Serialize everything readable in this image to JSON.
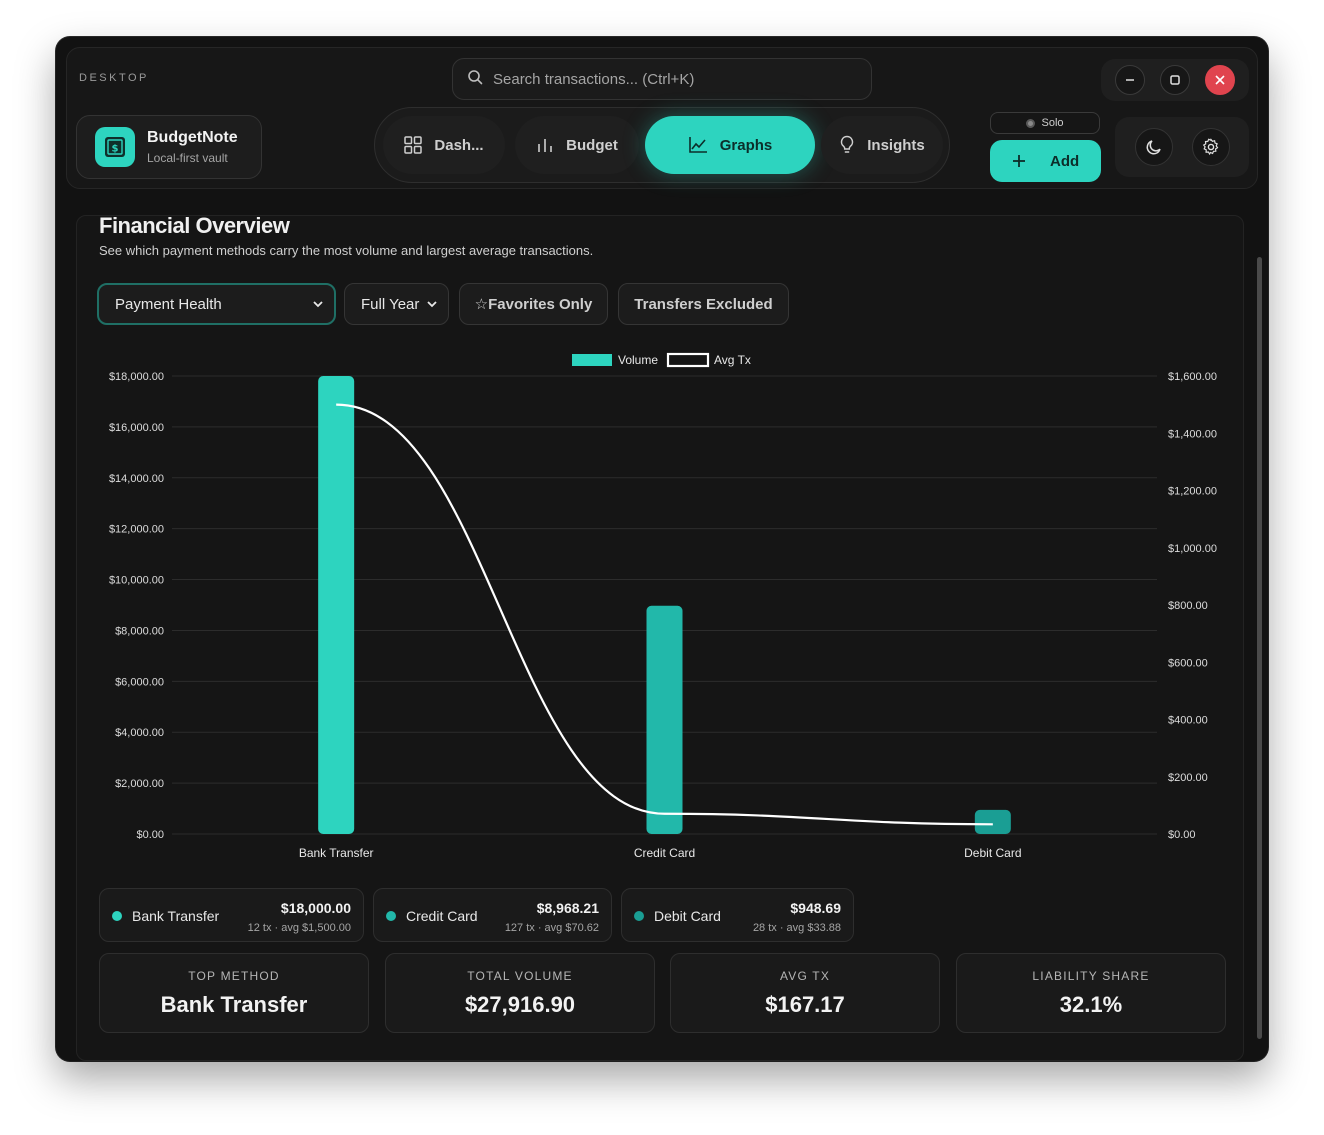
{
  "window": {
    "label": "DESKTOP"
  },
  "search": {
    "placeholder": "Search transactions... (Ctrl+K)"
  },
  "brand": {
    "name": "BudgetNote",
    "subtitle": "Local-first vault"
  },
  "nav": {
    "tabs": [
      {
        "label": "Dash...",
        "icon": "grid-icon"
      },
      {
        "label": "Budget",
        "icon": "bars-icon"
      },
      {
        "label": "Graphs",
        "icon": "line-chart-icon",
        "active": true
      },
      {
        "label": "Insights",
        "icon": "lightbulb-icon"
      }
    ]
  },
  "mode": {
    "label": "Solo"
  },
  "add": {
    "label": "Add"
  },
  "page": {
    "title": "Financial Overview",
    "subtitle": "See which payment methods carry the most volume and largest average transactions."
  },
  "filters": {
    "view": {
      "selected": "Payment Health"
    },
    "period": {
      "selected": "Full Year"
    },
    "favorites": "☆Favorites Only",
    "transfers": "Transfers Excluded"
  },
  "colors": {
    "accent": "#2dd4bf",
    "accent_dark": "#1a9e94",
    "accent_mid": "#22b8aa",
    "background": "#121212"
  },
  "chart_data": {
    "type": "bar",
    "categories": [
      "Bank Transfer",
      "Credit Card",
      "Debit Card"
    ],
    "series": [
      {
        "name": "Volume",
        "type": "bar",
        "axis": "left",
        "values": [
          18000.0,
          8968.21,
          948.69
        ]
      },
      {
        "name": "Avg Tx",
        "type": "line",
        "axis": "right",
        "values": [
          1500.0,
          70.62,
          33.88
        ]
      }
    ],
    "left_ylim": [
      0,
      18000
    ],
    "right_ylim": [
      0,
      1600
    ],
    "left_ticks": [
      "$0.00",
      "$2,000.00",
      "$4,000.00",
      "$6,000.00",
      "$8,000.00",
      "$10,000.00",
      "$12,000.00",
      "$14,000.00",
      "$16,000.00",
      "$18,000.00"
    ],
    "right_ticks": [
      "$0.00",
      "$200.00",
      "$400.00",
      "$600.00",
      "$800.00",
      "$1,000.00",
      "$1,200.00",
      "$1,400.00",
      "$1,600.00"
    ],
    "legend": [
      "Volume",
      "Avg Tx"
    ],
    "legend_position": "top-center",
    "grid": true
  },
  "methods": [
    {
      "name": "Bank Transfer",
      "value": "$18,000.00",
      "meta": "12 tx · avg $1,500.00",
      "color": "#2dd4bf"
    },
    {
      "name": "Credit Card",
      "value": "$8,968.21",
      "meta": "127 tx · avg $70.62",
      "color": "#22b8aa"
    },
    {
      "name": "Debit Card",
      "value": "$948.69",
      "meta": "28 tx · avg $33.88",
      "color": "#1a9e94"
    }
  ],
  "stats": [
    {
      "label": "TOP METHOD",
      "value": "Bank Transfer"
    },
    {
      "label": "TOTAL VOLUME",
      "value": "$27,916.90"
    },
    {
      "label": "AVG TX",
      "value": "$167.17"
    },
    {
      "label": "LIABILITY SHARE",
      "value": "32.1%"
    }
  ]
}
